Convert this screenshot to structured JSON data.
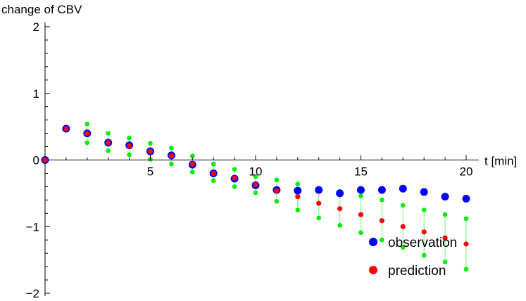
{
  "chart_data": {
    "type": "scatter",
    "title": "",
    "xlabel": "t [min]",
    "ylabel": "change of CBV",
    "xlim": [
      0,
      20
    ],
    "ylim": [
      -2,
      2
    ],
    "x_ticks": [
      5,
      10,
      15,
      20
    ],
    "x_tick_labels": [
      "5",
      "10",
      "15",
      "20"
    ],
    "y_ticks": [
      -2,
      -1,
      0,
      1,
      2
    ],
    "y_tick_labels": [
      "−2",
      "−1",
      "0",
      "1",
      "2"
    ],
    "x_minor_step": 1,
    "y_minor_step": 0.2,
    "grid": false,
    "legend_position": "bottom-right",
    "series": [
      {
        "name": "observation",
        "color": "#0000ff",
        "x": [
          0,
          1,
          2,
          3,
          4,
          5,
          6,
          7,
          8,
          9,
          10,
          11,
          12,
          13,
          14,
          15,
          16,
          17,
          18,
          19,
          20
        ],
        "y": [
          0,
          0.47,
          0.4,
          0.26,
          0.22,
          0.13,
          0.07,
          -0.07,
          -0.2,
          -0.28,
          -0.38,
          -0.45,
          -0.46,
          -0.45,
          -0.5,
          -0.45,
          -0.45,
          -0.43,
          -0.48,
          -0.55,
          -0.58
        ]
      },
      {
        "name": "prediction",
        "color": "#ff0000",
        "x": [
          0,
          1,
          2,
          3,
          4,
          5,
          6,
          7,
          8,
          9,
          10,
          11,
          12,
          13,
          14,
          15,
          16,
          17,
          18,
          19,
          20
        ],
        "y": [
          0,
          0.47,
          0.4,
          0.26,
          0.21,
          0.13,
          0.06,
          -0.06,
          -0.2,
          -0.27,
          -0.37,
          -0.46,
          -0.55,
          -0.65,
          -0.73,
          -0.82,
          -0.91,
          -1.0,
          -1.08,
          -1.17,
          -1.26
        ]
      }
    ],
    "band": {
      "color": "#00ee00",
      "x": [
        2,
        3,
        4,
        5,
        6,
        7,
        8,
        9,
        10,
        11,
        12,
        13,
        14,
        15,
        16,
        17,
        18,
        19,
        20
      ],
      "upper": [
        0.54,
        0.4,
        0.33,
        0.25,
        0.18,
        0.06,
        -0.06,
        -0.14,
        -0.25,
        -0.3,
        -0.36,
        -0.43,
        -0.47,
        -0.54,
        -0.6,
        -0.68,
        -0.75,
        -0.82,
        -0.88
      ],
      "lower": [
        0.26,
        0.14,
        0.08,
        0.01,
        -0.06,
        -0.18,
        -0.31,
        -0.4,
        -0.49,
        -0.62,
        -0.75,
        -0.87,
        -0.98,
        -1.09,
        -1.2,
        -1.31,
        -1.43,
        -1.53,
        -1.64
      ]
    }
  }
}
